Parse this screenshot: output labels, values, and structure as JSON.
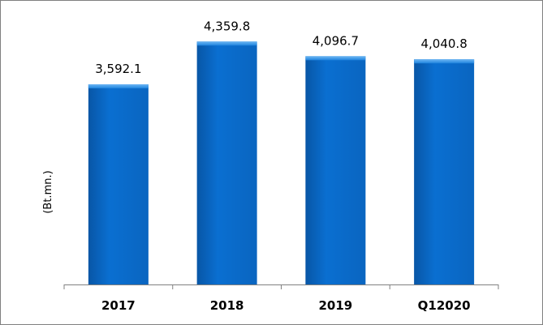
{
  "chart_data": {
    "type": "bar",
    "categories": [
      "2017",
      "2018",
      "2019",
      "Q12020"
    ],
    "values": [
      3592.1,
      4359.8,
      4096.7,
      4040.8
    ],
    "value_labels": [
      "3,592.1",
      "4,359.8",
      "4,096.7",
      "4,040.8"
    ],
    "title": "",
    "xlabel": "",
    "ylabel": "(Bt.mn.)",
    "ylim": [
      0,
      4800
    ],
    "grid": false,
    "legend": "none",
    "colors": {
      "bar": "#0a6fd1",
      "bar_light": "#3d9bef",
      "bar_dark": "#0856a6",
      "axis": "#808080",
      "frame": "#808080"
    }
  }
}
